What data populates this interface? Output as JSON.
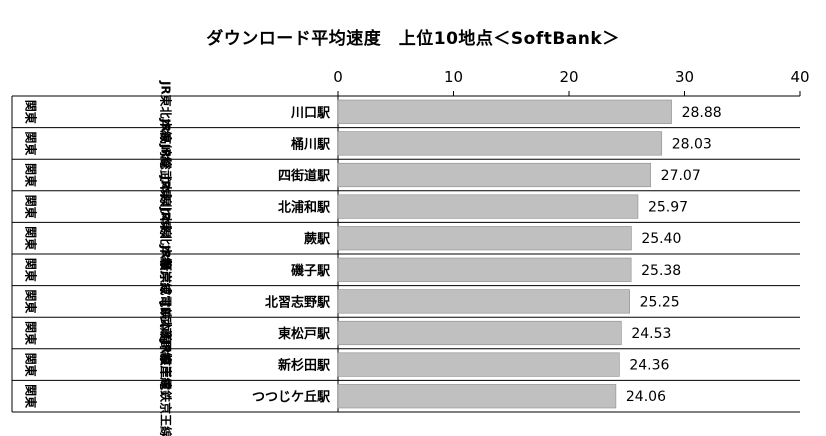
{
  "chart_data": {
    "type": "bar",
    "orientation": "horizontal",
    "title": "ダウンロード平均速度　上位10地点＜SoftBank＞",
    "xlim": [
      0,
      40
    ],
    "xticks": [
      0,
      10,
      20,
      30,
      40
    ],
    "grid": false,
    "rows": [
      {
        "region": "関東",
        "line": "JR東北本線",
        "station": "川口駅",
        "value": 28.88,
        "label": "28.88"
      },
      {
        "region": "関東",
        "line": "JR高崎線",
        "station": "桶川駅",
        "value": 28.03,
        "label": "28.03"
      },
      {
        "region": "関東",
        "line": "JR総武本線",
        "station": "四街道駅",
        "value": 27.07,
        "label": "27.07"
      },
      {
        "region": "関東",
        "line": "JR東北本線",
        "station": "北浦和駅",
        "value": 25.97,
        "label": "25.97"
      },
      {
        "region": "関東",
        "line": "JR東北本線",
        "station": "蕨駅",
        "value": 25.4,
        "label": "25.40"
      },
      {
        "region": "関東",
        "line": "JR根岸線",
        "station": "磯子駅",
        "value": 25.38,
        "label": "25.38"
      },
      {
        "region": "関東",
        "line": "新京成電鉄本線",
        "station": "北習志野駅",
        "value": 25.25,
        "label": "25.25"
      },
      {
        "region": "関東",
        "line": "JR武蔵野線",
        "station": "東松戸駅",
        "value": 24.53,
        "label": "24.53"
      },
      {
        "region": "関東",
        "line": "JR根岸線",
        "station": "新杉田駅",
        "value": 24.36,
        "label": "24.36"
      },
      {
        "region": "関東",
        "line": "京王電鉄京王線",
        "station": "つつじケ丘駅",
        "value": 24.06,
        "label": "24.06"
      }
    ],
    "colors": {
      "bar": "#c0c0c0",
      "bar_border": "#8c8c8c",
      "axis": "#000000"
    }
  }
}
